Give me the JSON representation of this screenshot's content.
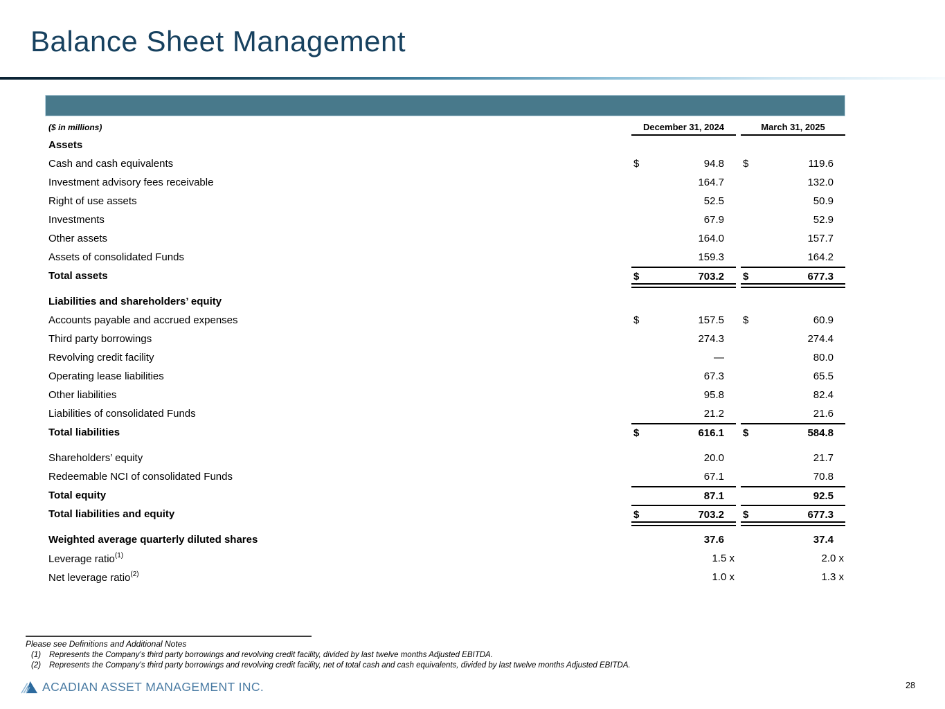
{
  "slide": {
    "title": "Balance Sheet Management",
    "page_number": "28"
  },
  "colors": {
    "accent_teal": "#48798b",
    "title_navy": "#17415f",
    "footer_blue": "#4a7ba3"
  },
  "table": {
    "units_label": "($ in millions)",
    "columns": [
      "December 31, 2024",
      "March 31, 2025"
    ],
    "rows": [
      {
        "name": "row-assets-header",
        "label": "Assets",
        "bold": true
      },
      {
        "name": "row-cash",
        "label": "Cash and cash equivalents",
        "d": true,
        "v1": "94.8",
        "v2": "119.6"
      },
      {
        "name": "row-advisory-fees",
        "label": "Investment advisory fees receivable",
        "v1": "164.7",
        "v2": "132.0"
      },
      {
        "name": "row-right-of-use",
        "label": "Right of use assets",
        "v1": "52.5",
        "v2": "50.9"
      },
      {
        "name": "row-investments",
        "label": "Investments",
        "v1": "67.9",
        "v2": "52.9"
      },
      {
        "name": "row-other-assets",
        "label": "Other assets",
        "v1": "164.0",
        "v2": "157.7"
      },
      {
        "name": "row-assets-consolidated-funds",
        "label": "Assets of consolidated Funds",
        "v1": "159.3",
        "v2": "164.2"
      },
      {
        "name": "row-total-assets",
        "label": "Total assets",
        "bold": true,
        "d": true,
        "v1": "703.2",
        "v2": "677.3",
        "ra": true,
        "rb": "d"
      },
      {
        "name": "row-liabilities-header",
        "label": "Liabilities and shareholders’ equity",
        "bold": true,
        "gap": true
      },
      {
        "name": "row-accounts-payable",
        "label": "Accounts payable and accrued expenses",
        "d": true,
        "v1": "157.5",
        "v2": "60.9"
      },
      {
        "name": "row-third-party-borrowings",
        "label": "Third party borrowings",
        "v1": "274.3",
        "v2": "274.4"
      },
      {
        "name": "row-revolving-credit",
        "label": "Revolving credit facility",
        "v1": "—",
        "v2": "80.0"
      },
      {
        "name": "row-operating-lease",
        "label": "Operating lease liabilities",
        "v1": "67.3",
        "v2": "65.5"
      },
      {
        "name": "row-other-liabilities",
        "label": "Other liabilities",
        "v1": "95.8",
        "v2": "82.4"
      },
      {
        "name": "row-liabilities-consolidated-funds",
        "label": "Liabilities of consolidated Funds",
        "v1": "21.2",
        "v2": "21.6"
      },
      {
        "name": "row-total-liabilities",
        "label": "Total liabilities",
        "bold": true,
        "d": true,
        "v1": "616.1",
        "v2": "584.8",
        "ra": true
      },
      {
        "name": "row-shareholders-equity",
        "label": "Shareholders’ equity",
        "v1": "20.0",
        "v2": "21.7",
        "gap": true
      },
      {
        "name": "row-redeemable-nci",
        "label": "Redeemable NCI of consolidated Funds",
        "v1": "67.1",
        "v2": "70.8"
      },
      {
        "name": "row-total-equity",
        "label": "Total equity",
        "bold": true,
        "v1": "87.1",
        "v2": "92.5",
        "ra": true
      },
      {
        "name": "row-total-liabilities-equity",
        "label": "Total liabilities and equity",
        "bold": true,
        "d": true,
        "v1": "703.2",
        "v2": "677.3",
        "ra": true,
        "rb": "d"
      },
      {
        "name": "row-weighted-shares",
        "label": "Weighted average quarterly diluted shares",
        "bold": true,
        "v1": "37.6",
        "v2": "37.4",
        "gap": true
      },
      {
        "name": "row-leverage-ratio",
        "label": "Leverage ratio",
        "sup": "(1)",
        "v1": "1.5 x",
        "v2": "2.0 x",
        "ratio": true
      },
      {
        "name": "row-net-leverage-ratio",
        "label": "Net leverage ratio",
        "sup": "(2)",
        "v1": "1.0 x",
        "v2": "1.3 x",
        "ratio": true
      }
    ]
  },
  "footnotes": {
    "intro": "Please see Definitions and Additional Notes",
    "items": [
      {
        "num": "(1)",
        "text": "Represents the Company’s third party borrowings and revolving credit facility, divided by last twelve months Adjusted EBITDA."
      },
      {
        "num": "(2)",
        "text": "Represents the Company’s third party borrowings and revolving credit facility, net of total cash and cash equivalents, divided by last twelve months Adjusted EBITDA."
      }
    ]
  },
  "footer": {
    "company": "ACADIAN ASSET MANAGEMENT INC."
  }
}
